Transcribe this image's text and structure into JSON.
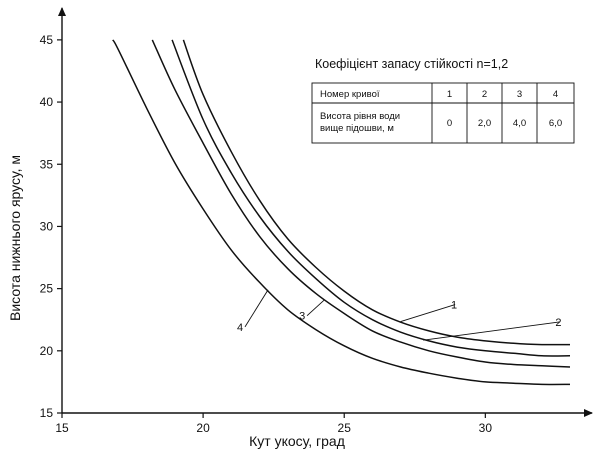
{
  "chart_data": {
    "type": "line",
    "xlabel": "Кут укосу, град",
    "ylabel": "Висота нижнього ярусу, м",
    "xlim": [
      15,
      33
    ],
    "ylim": [
      15,
      47
    ],
    "x_ticks": [
      "15",
      "20",
      "25",
      "30"
    ],
    "y_ticks": [
      "15",
      "20",
      "25",
      "30",
      "35",
      "40",
      "45"
    ],
    "grid": false,
    "legend_title": "Коефіцієнт запасу стійкості n=1,2",
    "legend_table": {
      "header_label": "Номер кривої",
      "row_label_line1": "Висота рівня води",
      "row_label_line2": "вище підошви, м",
      "curve_numbers": [
        "1",
        "2",
        "3",
        "4"
      ],
      "water_levels": [
        "0",
        "2,0",
        "4,0",
        "6,0"
      ]
    },
    "series": [
      {
        "name": "1",
        "color": "#111111",
        "x": [
          19.3,
          20,
          21,
          22,
          23,
          24,
          25,
          26,
          27,
          28,
          29,
          30,
          31,
          32,
          33
        ],
        "y": [
          45,
          40.6,
          36.0,
          32.1,
          29.0,
          26.7,
          24.8,
          23.3,
          22.3,
          21.6,
          21.1,
          20.8,
          20.6,
          20.5,
          20.5
        ]
      },
      {
        "name": "2",
        "color": "#111111",
        "x": [
          18.9,
          20,
          21,
          22,
          23,
          24,
          25,
          26,
          27,
          28,
          29,
          30,
          31,
          32,
          33
        ],
        "y": [
          45,
          38.6,
          34.3,
          30.8,
          28.0,
          25.8,
          23.9,
          22.5,
          21.5,
          20.8,
          20.3,
          20.0,
          19.8,
          19.6,
          19.6
        ]
      },
      {
        "name": "3",
        "color": "#111111",
        "x": [
          18.2,
          19,
          20,
          21,
          22,
          23,
          24,
          25,
          26,
          27,
          28,
          29,
          30,
          31,
          32,
          33
        ],
        "y": [
          45,
          41.0,
          36.7,
          32.6,
          29.2,
          26.6,
          24.6,
          23.0,
          21.6,
          20.7,
          20.0,
          19.5,
          19.1,
          18.9,
          18.8,
          18.7
        ]
      },
      {
        "name": "4",
        "color": "#111111",
        "x": [
          16.8,
          17,
          18,
          19,
          20,
          21,
          22,
          23,
          24,
          25,
          26,
          27,
          28,
          29,
          30,
          31,
          32,
          33
        ],
        "y": [
          45,
          44.2,
          39.5,
          35.1,
          31.4,
          28.1,
          25.5,
          23.3,
          21.7,
          20.4,
          19.4,
          18.7,
          18.2,
          17.8,
          17.5,
          17.4,
          17.3,
          17.3
        ]
      }
    ]
  }
}
